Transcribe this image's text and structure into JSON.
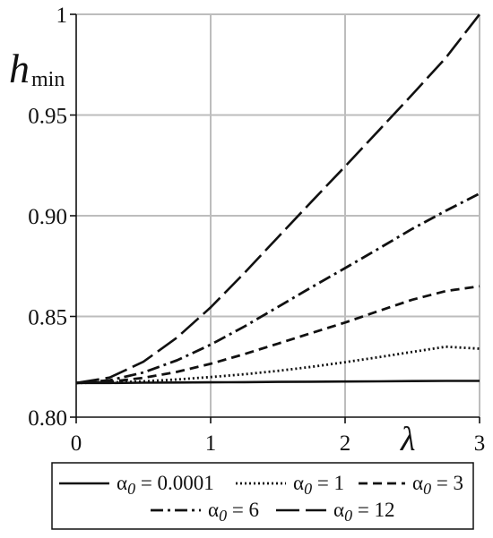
{
  "chart_data": {
    "type": "line",
    "title": "",
    "xlabel": "λ",
    "ylabel_main": "h",
    "ylabel_sub": "min",
    "xlim": [
      0,
      3
    ],
    "ylim": [
      0.8,
      1.0
    ],
    "x_ticks": [
      0,
      1,
      2,
      3
    ],
    "x_tick_labels": [
      "0",
      "1",
      "2",
      "3"
    ],
    "y_ticks": [
      0.8,
      0.85,
      0.9,
      0.95,
      1.0
    ],
    "y_tick_labels": [
      "0.80",
      "0.85",
      "0.90",
      "0.95",
      "1"
    ],
    "grid": true,
    "legend_position": "bottom",
    "x": [
      0,
      0.25,
      0.5,
      0.75,
      1.0,
      1.25,
      1.5,
      1.75,
      2.0,
      2.25,
      2.5,
      2.75,
      3.0
    ],
    "series": [
      {
        "name": "α0 = 0.0001",
        "label_prefix": "α",
        "label_sub": "0",
        "label_suffix": " = 0.0001",
        "style": "solid",
        "values": [
          0.817,
          0.817,
          0.8171,
          0.8172,
          0.8173,
          0.8174,
          0.8175,
          0.8176,
          0.8177,
          0.8178,
          0.8179,
          0.818,
          0.818
        ]
      },
      {
        "name": "α0 = 1",
        "label_prefix": "α",
        "label_sub": "0",
        "label_suffix": " = 1",
        "style": "dotted",
        "values": [
          0.817,
          0.8172,
          0.8178,
          0.8187,
          0.8199,
          0.8213,
          0.823,
          0.825,
          0.8273,
          0.8298,
          0.8324,
          0.835,
          0.834
        ]
      },
      {
        "name": "α0 = 3",
        "label_prefix": "α",
        "label_sub": "0",
        "label_suffix": " = 3",
        "style": "dashed",
        "values": [
          0.817,
          0.8176,
          0.8195,
          0.8225,
          0.8265,
          0.8313,
          0.8365,
          0.8418,
          0.847,
          0.8527,
          0.8583,
          0.8626,
          0.865
        ]
      },
      {
        "name": "α0 = 6",
        "label_prefix": "α",
        "label_sub": "0",
        "label_suffix": " = 6",
        "style": "dashdot",
        "values": [
          0.817,
          0.8183,
          0.8222,
          0.8282,
          0.836,
          0.845,
          0.8547,
          0.8645,
          0.874,
          0.8837,
          0.8935,
          0.9025,
          0.911
        ]
      },
      {
        "name": "α0 = 12",
        "label_prefix": "α",
        "label_sub": "0",
        "label_suffix": " = 12",
        "style": "longdash",
        "values": [
          0.817,
          0.8197,
          0.8275,
          0.8395,
          0.8545,
          0.8715,
          0.8893,
          0.907,
          0.9245,
          0.9423,
          0.9602,
          0.9785,
          1.0
        ]
      }
    ]
  }
}
